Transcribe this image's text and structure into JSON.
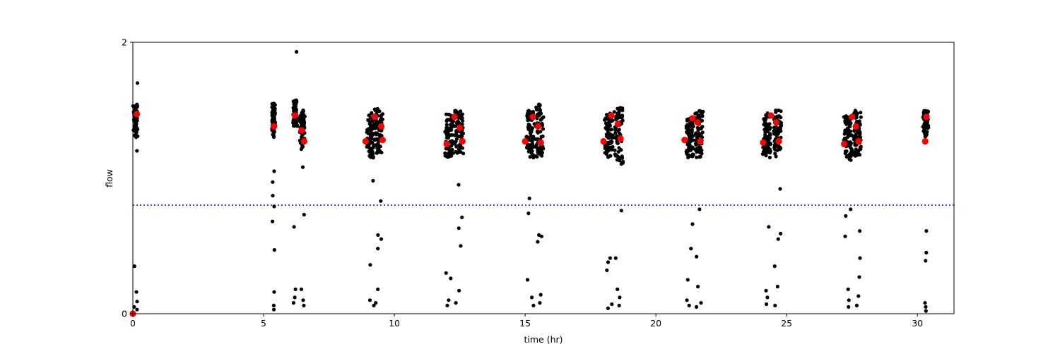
{
  "chart_data": {
    "type": "scatter",
    "title": "",
    "xlabel": "time (hr)",
    "ylabel": "flow",
    "xlim": [
      0,
      31.4
    ],
    "ylim": [
      0,
      2
    ],
    "xticks": [
      0,
      5,
      10,
      15,
      20,
      25,
      30
    ],
    "yticks": [
      0,
      2
    ],
    "grid": false,
    "threshold": {
      "y": 0.8,
      "style": "dotted",
      "color": "#0000ff"
    },
    "colors": {
      "raw": "#000000",
      "marked": "#ff0000"
    },
    "series": [
      {
        "role": "raw flow samples",
        "clusters": [
          {
            "x0": 0.0,
            "x1": 0.22,
            "main": [
              1.3,
              1.55
            ],
            "lows": [
              0.35,
              0.16,
              0.09,
              0.05,
              0.03,
              1.2,
              1.7
            ]
          },
          {
            "x0": 5.3,
            "x1": 5.45,
            "main": [
              1.3,
              1.55
            ],
            "lows": [
              1.05,
              0.97,
              0.87,
              0.79,
              0.68,
              0.47,
              0.16,
              0.06,
              0.03
            ]
          },
          {
            "x0": 6.1,
            "x1": 6.3,
            "main": [
              1.38,
              1.58
            ],
            "lows": [
              1.93,
              0.64,
              0.18,
              0.12,
              0.08
            ]
          },
          {
            "x0": 6.35,
            "x1": 6.6,
            "main": [
              1.2,
              1.5
            ],
            "lows": [
              1.08,
              0.73,
              0.18,
              0.1,
              0.06
            ]
          },
          {
            "x0": 8.9,
            "x1": 9.3,
            "main": [
              1.15,
              1.48
            ],
            "lows": [
              0.98,
              0.36,
              0.1,
              0.06
            ]
          },
          {
            "x0": 9.2,
            "x1": 9.6,
            "main": [
              1.18,
              1.52
            ],
            "lows": [
              0.83,
              0.58,
              0.55,
              0.48,
              0.18,
              0.08
            ]
          },
          {
            "x0": 11.9,
            "x1": 12.3,
            "main": [
              1.15,
              1.48
            ],
            "lows": [
              0.3,
              0.26,
              0.1,
              0.06
            ]
          },
          {
            "x0": 12.25,
            "x1": 12.7,
            "main": [
              1.18,
              1.5
            ],
            "lows": [
              0.95,
              0.71,
              0.63,
              0.5,
              0.17,
              0.08
            ]
          },
          {
            "x0": 15.0,
            "x1": 15.4,
            "main": [
              1.15,
              1.5
            ],
            "lows": [
              0.74,
              0.85,
              0.25,
              0.12,
              0.06
            ]
          },
          {
            "x0": 15.35,
            "x1": 15.75,
            "main": [
              1.15,
              1.55
            ],
            "lows": [
              0.57,
              0.53,
              0.58,
              0.14,
              0.08
            ]
          },
          {
            "x0": 18.0,
            "x1": 18.4,
            "main": [
              1.15,
              1.48
            ],
            "lows": [
              0.38,
              0.32,
              0.41,
              0.07,
              0.04
            ]
          },
          {
            "x0": 18.35,
            "x1": 18.8,
            "main": [
              1.1,
              1.52
            ],
            "lows": [
              0.76,
              0.41,
              0.18,
              0.12,
              0.06
            ]
          },
          {
            "x0": 21.1,
            "x1": 21.5,
            "main": [
              1.15,
              1.45
            ],
            "lows": [
              0.48,
              0.66,
              0.25,
              0.1,
              0.06
            ]
          },
          {
            "x0": 21.45,
            "x1": 21.85,
            "main": [
              1.15,
              1.5
            ],
            "lows": [
              0.77,
              0.42,
              0.2,
              0.08,
              0.05
            ]
          },
          {
            "x0": 24.05,
            "x1": 24.45,
            "main": [
              1.15,
              1.48
            ],
            "lows": [
              0.64,
              0.17,
              0.12,
              0.07
            ]
          },
          {
            "x0": 24.45,
            "x1": 24.85,
            "main": [
              1.15,
              1.5
            ],
            "lows": [
              0.92,
              0.59,
              0.55,
              0.35,
              0.2,
              0.06
            ]
          },
          {
            "x0": 27.15,
            "x1": 27.55,
            "main": [
              1.13,
              1.46
            ],
            "lows": [
              0.57,
              0.77,
              0.72,
              0.18,
              0.1,
              0.05
            ]
          },
          {
            "x0": 27.5,
            "x1": 27.9,
            "main": [
              1.15,
              1.5
            ],
            "lows": [
              0.41,
              0.61,
              0.27,
              0.13,
              0.06
            ]
          },
          {
            "x0": 30.2,
            "x1": 30.45,
            "main": [
              1.3,
              1.5
            ],
            "lows": [
              0.61,
              0.45,
              0.39,
              0.08,
              0.05,
              0.02
            ]
          }
        ]
      },
      {
        "role": "marked points",
        "x": [
          0.0,
          0.15,
          5.4,
          6.2,
          6.45,
          6.55,
          8.9,
          9.25,
          9.5,
          9.55,
          12.0,
          12.3,
          12.5,
          12.6,
          15.0,
          15.3,
          15.5,
          15.6,
          18.0,
          18.3,
          18.55,
          18.65,
          21.1,
          21.4,
          21.6,
          21.7,
          24.1,
          24.4,
          24.6,
          24.7,
          27.2,
          27.5,
          27.65,
          27.75,
          30.3,
          30.35
        ],
        "y": [
          0.0,
          1.47,
          1.38,
          1.46,
          1.35,
          1.27,
          1.27,
          1.45,
          1.38,
          1.28,
          1.25,
          1.45,
          1.37,
          1.27,
          1.27,
          1.45,
          1.38,
          1.26,
          1.27,
          1.46,
          1.4,
          1.29,
          1.28,
          1.44,
          1.41,
          1.27,
          1.26,
          1.46,
          1.41,
          1.27,
          1.25,
          1.45,
          1.38,
          1.27,
          1.27,
          1.45
        ]
      }
    ]
  }
}
